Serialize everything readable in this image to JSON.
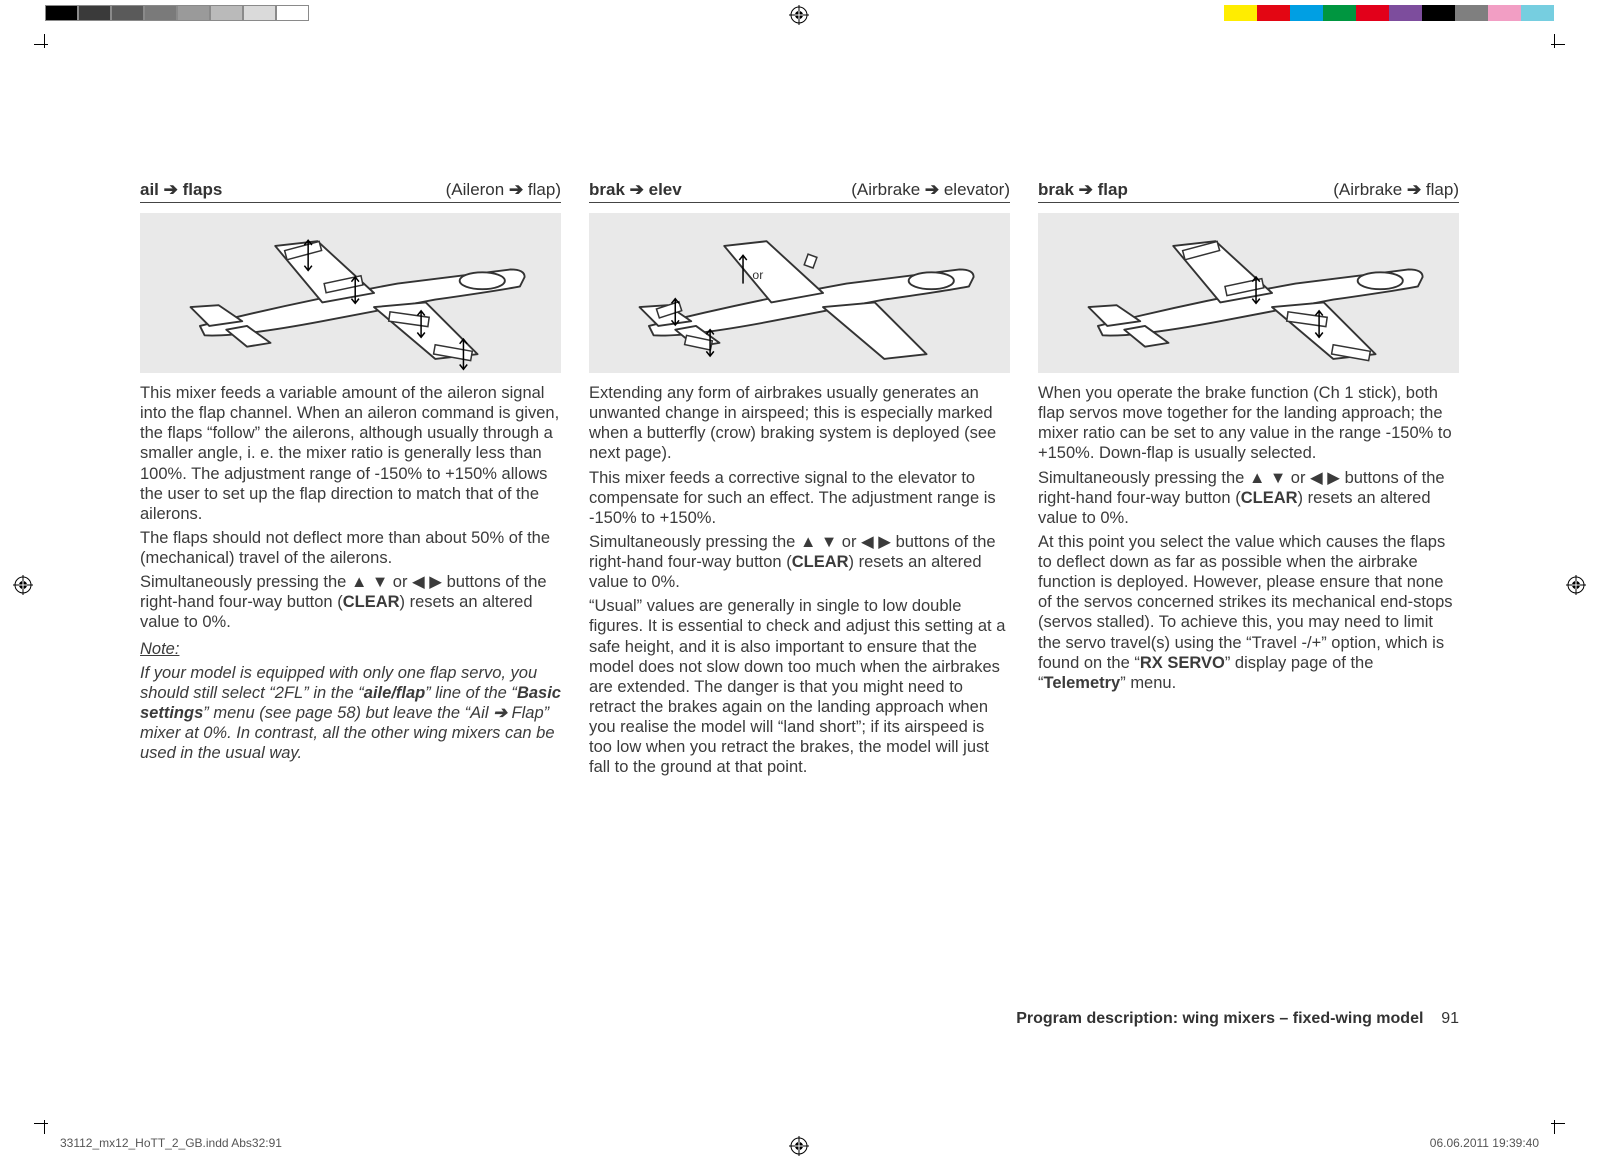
{
  "rail": {
    "left_strip_colors": [
      "#000000",
      "#3a3a3a",
      "#5a5a5a",
      "#7a7a7a",
      "#9a9a9a",
      "#bababa",
      "#dadada",
      "#ffffff"
    ],
    "right_strip_colors": [
      "#76cee0",
      "#f29ec4",
      "#7f7f7f",
      "#000000",
      "#7d4d9d",
      "#e2001a",
      "#009640",
      "#009fe3",
      "#e30613",
      "#ffed00"
    ],
    "left_strip_border": "#8a8a8a"
  },
  "columns": [
    {
      "key": "ail_flaps",
      "heading_left_bold": "ail",
      "heading_left_rest": " flaps",
      "heading_right_pre": "(Aileron ",
      "heading_right_post": " flap)",
      "fig": {
        "type": "plane-ail-flap"
      },
      "paras": [
        "This mixer feeds a variable amount of the aileron signal into the flap channel. When an aileron command is given, the flaps “follow” the ailerons, although usually through a smaller angle, i. e. the mixer ratio is generally less than 100%. The adjustment range of -150% to +150% allows the user to set up the flap direction to match that of the ailerons.",
        "The flaps should not deflect more than about 50% of the (mechanical) travel of the ailerons.",
        "Simultaneously pressing the ▲ ▼ or ◀ ▶ buttons of the right-hand four-way button (<b>CLEAR</b>) resets an altered value to 0%."
      ],
      "note_heading": "Note:",
      "note_html": "If your model is equipped with only one flap servo, you should still select “2FL” in the “<b><i>aile/flap</i></b>” line of the “<b><i>Basic settings</i></b>” menu (see page 58) but leave the “Ail <span class='arrow'>➔</span> Flap” mixer at 0%. In contrast, all the other wing mixers can be used in the usual way."
    },
    {
      "key": "brak_elev",
      "heading_left_bold": "brak",
      "heading_left_rest": " elev",
      "heading_right_pre": "(Airbrake ",
      "heading_right_post": " elevator)",
      "fig": {
        "type": "plane-brake-elev",
        "or_label": "or"
      },
      "paras": [
        "Extending any form of airbrakes usually generates an unwanted change in airspeed; this is especially marked when a butterfly (crow) braking system is deployed (see next page).",
        "This mixer feeds a corrective signal to the elevator to compensate for such an effect. The adjustment range is -150% to +150%.",
        "Simultaneously pressing the ▲ ▼ or ◀ ▶ buttons of the right-hand four-way button (<b>CLEAR</b>) resets an altered value to 0%.",
        "“Usual” values are generally in single to low double figures. It is essential to check and adjust this setting at a safe height, and it is also important to ensure that the model does not slow down too much when the airbrakes are extended. The danger is that you might need to retract the brakes again on the landing approach when you realise the model will “land short”; if its airspeed is too low when you retract the brakes, the model will just fall to the ground at that point."
      ]
    },
    {
      "key": "brak_flap",
      "heading_left_bold": "brak",
      "heading_left_rest": " flap",
      "heading_right_pre": "(Airbrake ",
      "heading_right_post": " flap)",
      "fig": {
        "type": "plane-brake-flap"
      },
      "paras": [
        "When you operate the brake function (Ch 1 stick), both flap servos move together for the landing approach; the mixer ratio can be set to any value in the range -150% to +150%. Down-flap is usually selected.",
        "Simultaneously pressing the ▲ ▼ or ◀ ▶ buttons of the right-hand four-way button (<b>CLEAR</b>) resets an altered value to 0%.",
        "At this point you select the value which causes the flaps to deflect down as far as possible when the airbrake function is deployed. However, please ensure that none of the servos concerned strikes its mechanical end-stops (servos stalled). To achieve this, you may need to limit the servo travel(s) using the “Travel -/+” option, which is found on the “<b>RX SERVO</b>” display page of the “<b>Telemetry</b>” menu."
      ]
    }
  ],
  "footer": {
    "text_bold": "Program description: wing mixers – fixed-wing model",
    "page_no": "91"
  },
  "slug": {
    "left": "33112_mx12_HoTT_2_GB.indd   Abs32:91",
    "right": "06.06.2011   19:39:40"
  }
}
